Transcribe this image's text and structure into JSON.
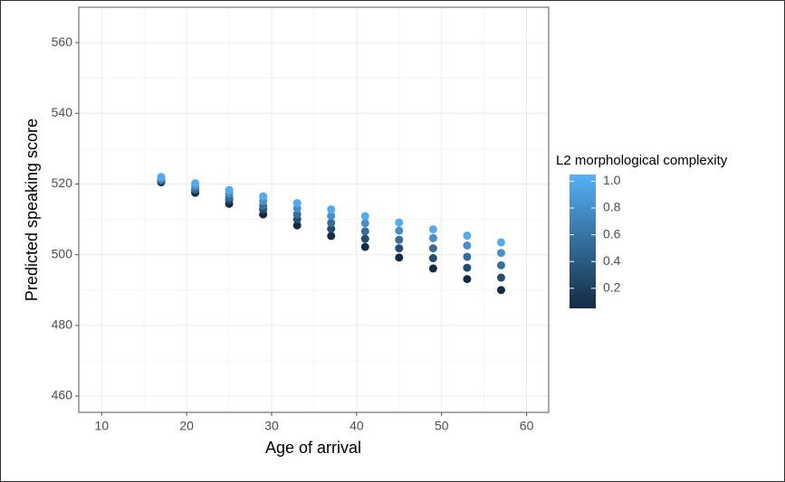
{
  "chart_data": {
    "type": "scatter",
    "x_label": "Age of arrival",
    "y_label": "Predicted speaking score",
    "xlim": [
      7.3,
      62.6
    ],
    "xticks": [
      10,
      20,
      30,
      40,
      50,
      60
    ],
    "ylim": [
      455.4,
      570
    ],
    "yticks": [
      460,
      480,
      500,
      520,
      540,
      560
    ],
    "grid": true,
    "x": [
      17,
      21,
      25,
      29,
      33,
      37,
      41,
      45,
      49,
      53,
      57
    ],
    "series": [
      {
        "z": 0.05,
        "values": [
          520.5,
          517.5,
          514.4,
          511.4,
          508.3,
          505.3,
          502.2,
          499.2,
          496.1,
          493.1,
          490.0
        ]
      },
      {
        "z": 0.3,
        "values": [
          521,
          518.3,
          515.5,
          512.8,
          510,
          507.3,
          504.5,
          501.8,
          499,
          496.3,
          493.5
        ]
      },
      {
        "z": 0.55,
        "values": [
          521,
          518.6,
          516.2,
          513.8,
          511.4,
          509,
          506.6,
          504.2,
          501.8,
          499.4,
          497
        ]
      },
      {
        "z": 0.8,
        "values": [
          521.5,
          519.4,
          517.3,
          515.2,
          513.1,
          511,
          508.9,
          506.8,
          504.7,
          502.6,
          500.5
        ]
      },
      {
        "z": 1.0,
        "values": [
          522,
          520.2,
          518.3,
          516.5,
          514.6,
          512.8,
          510.9,
          509.1,
          507.2,
          505.4,
          503.5
        ]
      }
    ],
    "colorbar": {
      "title": "L2 morphological complexity",
      "lim": [
        0.05,
        1.05
      ],
      "ticks": [
        0.2,
        0.4,
        0.6,
        0.8,
        {
          "value": 1,
          "label": "1.0"
        }
      ],
      "low_color": "#132B43",
      "high_color": "#56B1F7"
    }
  }
}
